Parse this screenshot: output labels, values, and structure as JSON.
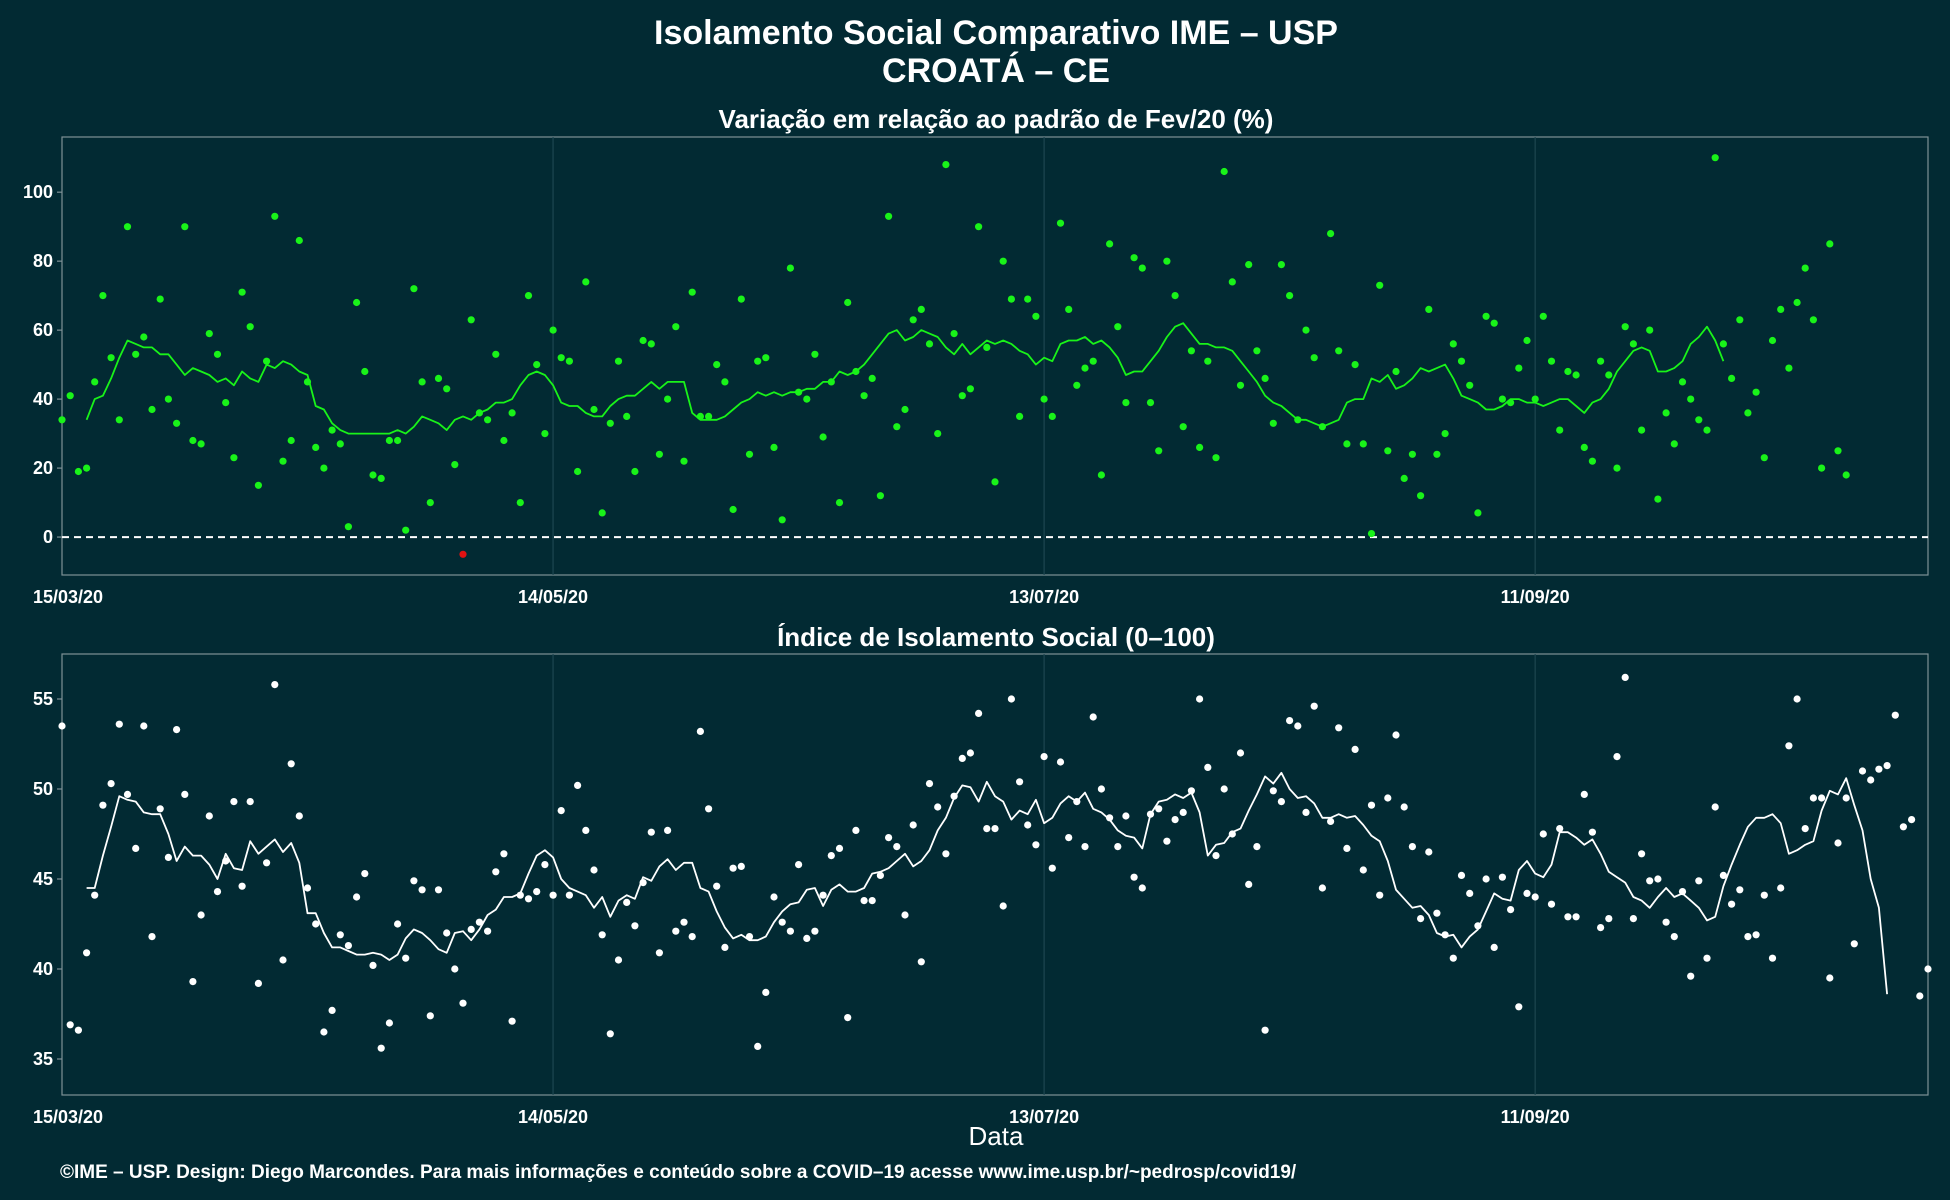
{
  "title_line1": "Isolamento Social Comparativo IME – USP",
  "title_line2": "CROATÁ – CE",
  "footer": "©IME – USP. Design: Diego Marcondes. Para mais informações e conteúdo sobre a COVID–19 acesse www.ime.usp.br/~pedrosp/covid19/",
  "xlabel": "Data",
  "colors": {
    "background": "#022a33",
    "variation_points": "#19f319",
    "variation_line": "#19f319",
    "negative_points": "#e11212",
    "index_points": "#ffffff",
    "index_line": "#ffffff",
    "zero_line": "#ffffff"
  },
  "chart_data": [
    {
      "type": "scatter",
      "title": "Variação em relação ao padrão de Fev/20 (%)",
      "xlabel": "",
      "ylabel": "",
      "x_range": [
        "2020-03-15",
        "2020-10-29"
      ],
      "ylim": [
        -11,
        116
      ],
      "yticks": [
        0,
        20,
        40,
        60,
        80,
        100
      ],
      "xticks": [
        "15/03/20",
        "14/05/20",
        "13/07/20",
        "11/09/20"
      ],
      "xtick_dates": [
        "2020-03-15",
        "2020-05-14",
        "2020-07-13",
        "2020-09-11"
      ],
      "reference_line": 0,
      "grid": true,
      "series": [
        {
          "kind": "points",
          "start": "2020-03-15",
          "values": [
            34,
            41,
            19,
            20,
            45,
            70,
            52,
            34,
            90,
            53,
            58,
            37,
            69,
            40,
            33,
            90,
            28,
            27,
            59,
            53,
            39,
            23,
            71,
            61,
            15,
            51,
            93,
            22,
            28,
            86,
            45,
            26,
            20,
            31,
            27,
            3,
            68,
            48,
            18,
            17,
            28,
            28,
            2,
            72,
            45,
            10,
            46,
            43,
            21,
            -5,
            63,
            36,
            34,
            53,
            28,
            36,
            10,
            70,
            50,
            30,
            60,
            52,
            51,
            19,
            74,
            37,
            7,
            33,
            51,
            35,
            19,
            57,
            56,
            24,
            40,
            61,
            22,
            71,
            35,
            35,
            50,
            45,
            8,
            69,
            24,
            51,
            52,
            26,
            5,
            78,
            42,
            40,
            53,
            29,
            45,
            10,
            68,
            48,
            41,
            46,
            12,
            93,
            32,
            37,
            63,
            66,
            56,
            30,
            108,
            59,
            41,
            43,
            90,
            55,
            16,
            80,
            69,
            35,
            69,
            64,
            40,
            35,
            91,
            66,
            44,
            49,
            51,
            18,
            85,
            61,
            39,
            81,
            78,
            39,
            25,
            80,
            70,
            32,
            54,
            26,
            51,
            23,
            106,
            74,
            44,
            79,
            54,
            46,
            33,
            79,
            70,
            34,
            60,
            52,
            32,
            88,
            54,
            27,
            50,
            27,
            1,
            73,
            25,
            48,
            17,
            24,
            12,
            66,
            24,
            30,
            56,
            51,
            44,
            7,
            64,
            62,
            40,
            39,
            49,
            57,
            40,
            64,
            51,
            31,
            48,
            47,
            26,
            22,
            51,
            47,
            20,
            61,
            56,
            31,
            60,
            11,
            36,
            27,
            45,
            40,
            34,
            31,
            110,
            56,
            46,
            63,
            36,
            42,
            23,
            57,
            66,
            49,
            68,
            78,
            63,
            20,
            85,
            25,
            18
          ]
        },
        {
          "kind": "line",
          "name": "media",
          "start": "2020-03-18",
          "values": [
            34,
            40,
            41,
            46,
            52,
            57,
            56,
            55,
            55,
            53,
            53,
            50,
            47,
            49,
            48,
            47,
            45,
            46,
            44,
            48,
            46,
            45,
            50,
            49,
            51,
            50,
            48,
            47,
            38,
            37,
            33,
            31,
            30,
            30,
            30,
            30,
            30,
            30,
            31,
            30,
            32,
            35,
            34,
            33,
            31,
            34,
            35,
            34,
            36,
            37,
            39,
            39,
            40,
            44,
            47,
            48,
            47,
            44,
            39,
            38,
            38,
            36,
            35,
            35,
            38,
            40,
            41,
            41,
            43,
            45,
            43,
            45,
            45,
            45,
            36,
            34,
            34,
            34,
            35,
            37,
            39,
            40,
            42,
            41,
            42,
            41,
            42,
            42,
            43,
            43,
            45,
            45,
            48,
            47,
            48,
            50,
            53,
            56,
            59,
            60,
            57,
            58,
            60,
            59,
            58,
            55,
            53,
            56,
            53,
            55,
            57,
            56,
            57,
            56,
            54,
            53,
            50,
            52,
            51,
            56,
            57,
            57,
            58,
            56,
            57,
            55,
            52,
            47,
            48,
            48,
            51,
            54,
            58,
            61,
            62,
            59,
            56,
            56,
            55,
            55,
            54,
            51,
            48,
            45,
            41,
            39,
            38,
            36,
            34,
            34,
            33,
            32,
            33,
            34,
            39,
            40,
            40,
            46,
            45,
            47,
            43,
            44,
            46,
            49,
            48,
            49,
            50,
            46,
            41,
            40,
            39,
            37,
            37,
            38,
            40,
            40,
            39,
            39,
            38,
            39,
            40,
            40,
            38,
            36,
            39,
            40,
            43,
            48,
            51,
            54,
            55,
            54,
            48,
            48,
            49,
            51,
            56,
            58,
            61,
            57,
            51
          ]
        }
      ]
    },
    {
      "type": "scatter",
      "title": "Índice de Isolamento Social (0–100)",
      "xlabel": "Data",
      "ylabel": "",
      "x_range": [
        "2020-03-15",
        "2020-10-29"
      ],
      "ylim": [
        33,
        57.5
      ],
      "yticks": [
        35,
        40,
        45,
        50,
        55
      ],
      "xticks": [
        "15/03/20",
        "14/05/20",
        "13/07/20",
        "11/09/20"
      ],
      "xtick_dates": [
        "2020-03-15",
        "2020-05-14",
        "2020-07-13",
        "2020-09-11"
      ],
      "grid": true,
      "series": [
        {
          "kind": "points",
          "start": "2020-03-15",
          "values": [
            53.5,
            36.9,
            36.6,
            40.9,
            44.1,
            49.1,
            50.3,
            53.6,
            49.7,
            46.7,
            53.5,
            41.8,
            48.9,
            46.2,
            53.3,
            49.7,
            39.3,
            43.0,
            48.5,
            44.3,
            46.0,
            49.3,
            44.6,
            49.3,
            39.2,
            45.9,
            55.8,
            40.5,
            51.4,
            48.5,
            44.5,
            42.5,
            36.5,
            37.7,
            41.9,
            41.3,
            44.0,
            45.3,
            40.2,
            35.6,
            37.0,
            42.5,
            40.6,
            44.9,
            44.4,
            37.4,
            44.4,
            42.0,
            40.0,
            38.1,
            42.2,
            42.6,
            42.1,
            45.4,
            46.4,
            37.1,
            44.1,
            43.9,
            44.3,
            45.8,
            44.1,
            48.8,
            44.1,
            50.2,
            47.7,
            45.5,
            41.9,
            36.4,
            40.5,
            43.7,
            42.4,
            44.8,
            47.6,
            40.9,
            47.7,
            42.1,
            42.6,
            41.8,
            53.2,
            48.9,
            44.6,
            41.2,
            45.6,
            45.7,
            41.8,
            35.7,
            38.7,
            44.0,
            42.6,
            42.1,
            45.8,
            41.7,
            42.1,
            44.1,
            46.3,
            46.7,
            37.3,
            47.7,
            43.8,
            43.8,
            45.2,
            47.3,
            46.8,
            43.0,
            48.0,
            40.4,
            50.3,
            49.0,
            46.4,
            49.6,
            51.7,
            52.0,
            54.2,
            47.8,
            47.8,
            43.5,
            55.0,
            50.4,
            48.0,
            46.9,
            51.8,
            45.6,
            51.5,
            47.3,
            49.3,
            46.8,
            54.0,
            50.0,
            48.4,
            46.8,
            48.5,
            45.1,
            44.5,
            48.6,
            48.9,
            47.1,
            48.3,
            48.7,
            49.9,
            55.0,
            51.2,
            46.3,
            50.0,
            47.5,
            52.0,
            44.7,
            46.8,
            36.6,
            49.9,
            49.3,
            53.8,
            53.5,
            48.7,
            54.6,
            44.5,
            48.2,
            53.4,
            46.7,
            52.2,
            45.5,
            49.1,
            44.1,
            49.5,
            53.0,
            49.0,
            46.8,
            42.8,
            46.5,
            43.1,
            41.9,
            40.6,
            45.2,
            44.2,
            42.4,
            45.0,
            41.2,
            45.1,
            43.3,
            37.9,
            44.2,
            44.0,
            47.5,
            43.6,
            47.8,
            42.9,
            42.9,
            49.7,
            47.6,
            42.3,
            42.8,
            51.8,
            56.2,
            42.8,
            46.4,
            44.9,
            45.0,
            42.6,
            41.8,
            44.3,
            39.6,
            44.9,
            40.6,
            49.0,
            45.2,
            43.6,
            44.4,
            41.8,
            41.9,
            44.1,
            40.6,
            44.5,
            52.4,
            55.0,
            47.8,
            49.5,
            49.5,
            39.5,
            47.0,
            49.5,
            41.4,
            51.0,
            50.5,
            51.1,
            51.3,
            54.1,
            47.9,
            48.3,
            38.5,
            40.0
          ]
        },
        {
          "kind": "line",
          "name": "media",
          "start": "2020-03-18",
          "values": [
            44.5,
            44.5,
            46.3,
            47.9,
            49.6,
            49.4,
            49.3,
            48.7,
            48.6,
            48.6,
            47.5,
            46.0,
            46.8,
            46.3,
            46.3,
            45.8,
            45.0,
            46.4,
            45.6,
            45.5,
            47.1,
            46.4,
            46.8,
            47.2,
            46.5,
            47.0,
            45.9,
            43.1,
            43.1,
            42.0,
            41.2,
            41.2,
            41.0,
            40.8,
            40.8,
            40.9,
            40.8,
            40.5,
            40.8,
            41.7,
            42.2,
            42.0,
            41.6,
            41.1,
            40.9,
            42.0,
            42.1,
            41.6,
            42.2,
            43.0,
            43.3,
            44.0,
            44.0,
            44.2,
            45.3,
            46.3,
            46.6,
            46.2,
            45.0,
            44.5,
            44.3,
            44.1,
            43.4,
            44.0,
            42.9,
            43.8,
            44.1,
            43.9,
            45.1,
            44.9,
            45.7,
            46.1,
            45.5,
            45.9,
            45.9,
            44.5,
            44.3,
            43.2,
            42.3,
            41.7,
            41.9,
            41.6,
            41.6,
            41.8,
            42.6,
            43.2,
            43.6,
            43.7,
            44.4,
            44.5,
            43.5,
            44.4,
            44.7,
            44.3,
            44.3,
            44.5,
            45.3,
            45.4,
            45.6,
            46.0,
            46.4,
            45.7,
            46.0,
            46.6,
            47.7,
            48.4,
            49.5,
            50.2,
            50.1,
            49.3,
            50.4,
            49.6,
            49.3,
            48.3,
            48.8,
            48.6,
            49.4,
            48.1,
            48.4,
            49.2,
            49.6,
            49.3,
            49.8,
            48.9,
            48.7,
            48.3,
            47.7,
            47.4,
            47.3,
            46.7,
            48.6,
            49.3,
            49.4,
            49.7,
            49.5,
            49.8,
            48.7,
            46.3,
            46.9,
            47.0,
            47.6,
            47.8,
            48.8,
            49.7,
            50.7,
            50.3,
            50.9,
            50.0,
            49.5,
            49.6,
            49.2,
            48.4,
            48.4,
            48.6,
            48.4,
            48.5,
            48.0,
            47.4,
            47.1,
            46.0,
            44.4,
            43.9,
            43.4,
            43.5,
            43.0,
            42.0,
            41.8,
            41.9,
            41.2,
            41.8,
            42.2,
            43.2,
            44.2,
            43.9,
            43.8,
            45.5,
            46.0,
            45.3,
            45.1,
            45.8,
            47.6,
            47.6,
            47.3,
            46.9,
            47.2,
            46.4,
            45.4,
            45.1,
            44.8,
            44.0,
            43.8,
            43.4,
            44.0,
            44.5,
            44.0,
            44.2,
            43.8,
            43.4,
            42.7,
            42.9,
            44.6,
            45.8,
            46.9,
            47.9,
            48.4,
            48.4,
            48.6,
            48.1,
            46.4,
            46.6,
            46.9,
            47.1,
            48.8,
            49.9,
            49.7,
            50.6,
            49.1,
            47.7,
            45.0,
            43.4,
            38.6
          ]
        }
      ]
    }
  ]
}
